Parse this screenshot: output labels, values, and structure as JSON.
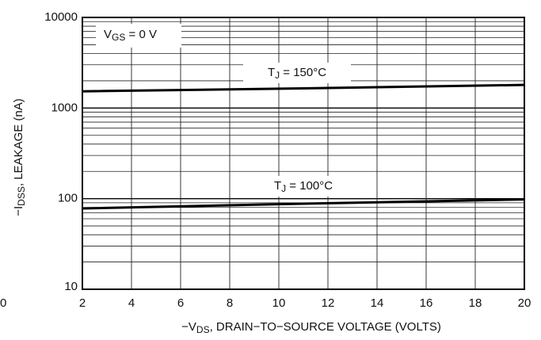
{
  "chart_data": {
    "type": "line",
    "x_label": {
      "main": "−V",
      "sub": "DS",
      "rest": ", DRAIN−TO−SOURCE VOLTAGE (VOLTS)"
    },
    "y_label": {
      "main": "−I",
      "sub": "DSS",
      "rest": ", LEAKAGE (nA)"
    },
    "condition": {
      "main": "V",
      "sub": "GS",
      "rest": " = 0 V"
    },
    "edge_fragment": "0",
    "x": [
      2,
      11,
      20
    ],
    "series": [
      {
        "label": {
          "main": "T",
          "sub": "J",
          "rest": " = 150°C"
        },
        "color": "#000000",
        "values": [
          1530,
          1650,
          1800
        ]
      },
      {
        "label": {
          "main": "T",
          "sub": "J",
          "rest": " = 100°C"
        },
        "color": "#000000",
        "values": [
          78,
          88,
          98
        ]
      }
    ],
    "xlim": [
      2,
      20
    ],
    "xticks": [
      2,
      4,
      6,
      8,
      10,
      12,
      14,
      16,
      18,
      20
    ],
    "ylim": [
      10,
      10000
    ],
    "yticks": [
      10,
      100,
      1000,
      10000
    ],
    "yminorticks": [
      20,
      30,
      40,
      50,
      60,
      70,
      80,
      90,
      200,
      300,
      400,
      500,
      600,
      700,
      800,
      900,
      2000,
      3000,
      4000,
      5000,
      6000,
      7000,
      8000,
      9000
    ],
    "ylog": true,
    "grid": true
  }
}
